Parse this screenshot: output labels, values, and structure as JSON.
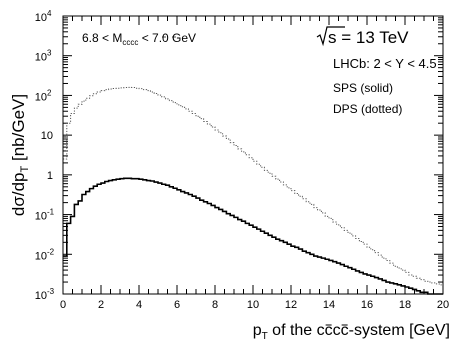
{
  "chart_data": {
    "type": "line",
    "title": "",
    "xlabel_pre": "p",
    "xlabel_sub": "T",
    "xlabel_post": " of the c",
    "xlabel_cbar1": "c",
    "xlabel_mid": "c",
    "xlabel_cbar2": "c",
    "xlabel_end": "-system   [GeV]",
    "ylabel_main": "dσ/dp",
    "ylabel_sub": "T",
    "ylabel_unit": "[nb/GeV]",
    "xlim": [
      0,
      20
    ],
    "ylim": [
      0.001,
      10000
    ],
    "yscale": "log",
    "x_ticks": [
      "0",
      "2",
      "4",
      "6",
      "8",
      "10",
      "12",
      "14",
      "16",
      "18",
      "20"
    ],
    "y_ticks": [
      {
        "base": "10",
        "exp": "-3"
      },
      {
        "base": "10",
        "exp": "-2"
      },
      {
        "base": "10",
        "exp": "-1"
      },
      {
        "base": "1",
        "exp": ""
      },
      {
        "base": "10",
        "exp": ""
      },
      {
        "base": "10",
        "exp": "2"
      },
      {
        "base": "10",
        "exp": "3"
      },
      {
        "base": "10",
        "exp": "4"
      }
    ],
    "annotations": {
      "mass_range_pre": "6.8 < M",
      "mass_range_sub": "cccc",
      "mass_range_post": " < 7.0 GeV",
      "energy": "s = 13 TeV",
      "rapidity": "LHCb: 2 < Y < 4.5",
      "sps_label": "SPS (solid)",
      "dps_label": "DPS (dotted)"
    },
    "bin_width": 0.2,
    "series": [
      {
        "style": "solid",
        "label": "SPS (solid)",
        "values": [
          0.009,
          0.06,
          0.09,
          0.18,
          0.22,
          0.32,
          0.38,
          0.45,
          0.52,
          0.58,
          0.62,
          0.68,
          0.72,
          0.75,
          0.78,
          0.8,
          0.82,
          0.82,
          0.8,
          0.8,
          0.78,
          0.75,
          0.72,
          0.7,
          0.66,
          0.62,
          0.58,
          0.55,
          0.5,
          0.46,
          0.42,
          0.38,
          0.35,
          0.32,
          0.29,
          0.26,
          0.23,
          0.21,
          0.19,
          0.17,
          0.15,
          0.135,
          0.12,
          0.105,
          0.095,
          0.085,
          0.075,
          0.068,
          0.06,
          0.054,
          0.048,
          0.043,
          0.038,
          0.034,
          0.03,
          0.027,
          0.024,
          0.022,
          0.02,
          0.018,
          0.016,
          0.015,
          0.0135,
          0.012,
          0.011,
          0.01,
          0.009,
          0.0085,
          0.008,
          0.0075,
          0.007,
          0.0065,
          0.006,
          0.0055,
          0.005,
          0.0046,
          0.0042,
          0.0038,
          0.0035,
          0.0032,
          0.003,
          0.0028,
          0.0026,
          0.0024,
          0.0022,
          0.002,
          0.0019,
          0.0018,
          0.0017,
          0.0016,
          0.0015,
          0.0014,
          0.0013,
          0.0012,
          0.0011,
          0.0011,
          0.001,
          0.001,
          0.001,
          0.001
        ]
      },
      {
        "style": "dotted",
        "label": "DPS (dotted)",
        "values": [
          2.5,
          20,
          35,
          48,
          60,
          72,
          85,
          98,
          110,
          122,
          132,
          140,
          145,
          150,
          152,
          155,
          158,
          160,
          158,
          152,
          148,
          140,
          132,
          122,
          112,
          102,
          92,
          82,
          74,
          66,
          58,
          52,
          46,
          40,
          35,
          30,
          26,
          22,
          19,
          16,
          13.5,
          11.5,
          9.5,
          8.0,
          6.5,
          5.5,
          4.5,
          3.8,
          3.2,
          2.7,
          2.2,
          1.85,
          1.55,
          1.3,
          1.1,
          0.92,
          0.78,
          0.66,
          0.56,
          0.47,
          0.4,
          0.34,
          0.29,
          0.25,
          0.21,
          0.18,
          0.15,
          0.13,
          0.11,
          0.09,
          0.08,
          0.065,
          0.055,
          0.047,
          0.04,
          0.034,
          0.029,
          0.025,
          0.021,
          0.018,
          0.015,
          0.013,
          0.011,
          0.0095,
          0.008,
          0.007,
          0.006,
          0.005,
          0.0045,
          0.004,
          0.0035,
          0.003,
          0.0028,
          0.0025,
          0.0023,
          0.0021,
          0.002,
          0.0019,
          0.0018,
          0.0017
        ]
      }
    ]
  }
}
